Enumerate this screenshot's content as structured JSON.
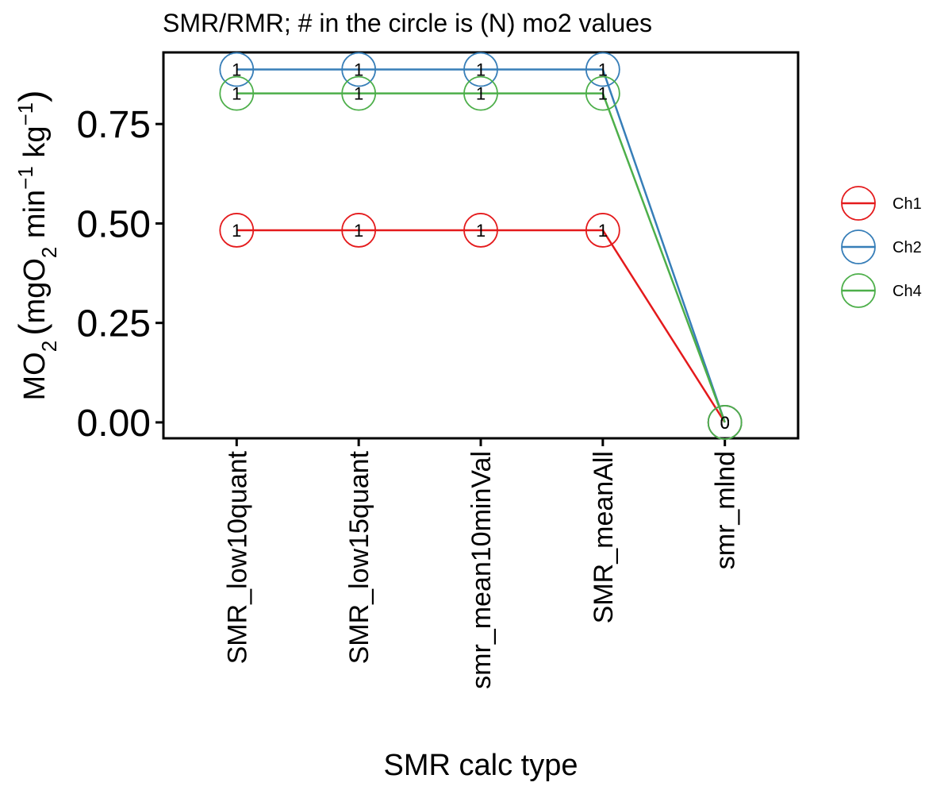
{
  "chart_data": {
    "type": "line",
    "title": "SMR/RMR; # in the circle is (N) mo2 values",
    "xlabel": "SMR calc type",
    "ylabel": {
      "base": "MO",
      "sub1": "2",
      "paren_open": "(",
      "unit1": "mgO",
      "sub2": "2",
      "unit2": " min",
      "sup1": "−1",
      "unit3": " kg",
      "sup2": "−1",
      "paren_close": ")"
    },
    "categories": [
      "SMR_low10quant",
      "SMR_low15quant",
      "smr_mean10minVal",
      "SMR_meanAll",
      "smr_mlnd"
    ],
    "ylim": [
      -0.04,
      0.93
    ],
    "yticks": [
      0.0,
      0.25,
      0.5,
      0.75
    ],
    "ytick_labels": [
      "0.00",
      "0.25",
      "0.50",
      "0.75"
    ],
    "series": [
      {
        "name": "Ch1",
        "color": "#E41A1C",
        "values": [
          0.483,
          0.483,
          0.483,
          0.483,
          0.0
        ],
        "n": [
          "1",
          "1",
          "1",
          "1",
          "0"
        ]
      },
      {
        "name": "Ch2",
        "color": "#377EB8",
        "values": [
          0.887,
          0.887,
          0.887,
          0.887,
          0.0
        ],
        "n": [
          "1",
          "1",
          "1",
          "1",
          "0"
        ]
      },
      {
        "name": "Ch4",
        "color": "#4DAF4A",
        "values": [
          0.827,
          0.827,
          0.827,
          0.827,
          0.0
        ],
        "n": [
          "1",
          "1",
          "1",
          "1",
          "0"
        ]
      }
    ],
    "grid": false,
    "legend_position": "right"
  }
}
